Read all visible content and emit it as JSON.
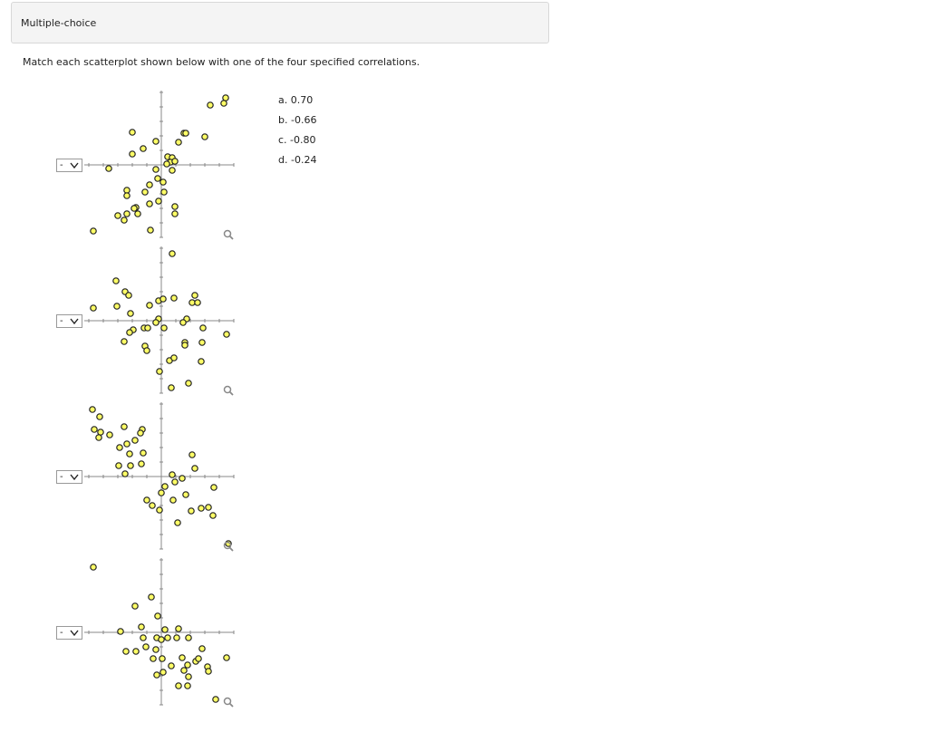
{
  "header": {
    "title": "Multiple-choice"
  },
  "instruction": "Match each scatterplot shown below with one of the four specified correlations.",
  "plots": [
    {
      "select": "-"
    },
    {
      "select": "-"
    },
    {
      "select": "-"
    },
    {
      "select": "-"
    }
  ],
  "options": [
    "a. 0.70",
    "b. -0.66",
    "c. -0.80",
    "d. -0.24"
  ]
}
